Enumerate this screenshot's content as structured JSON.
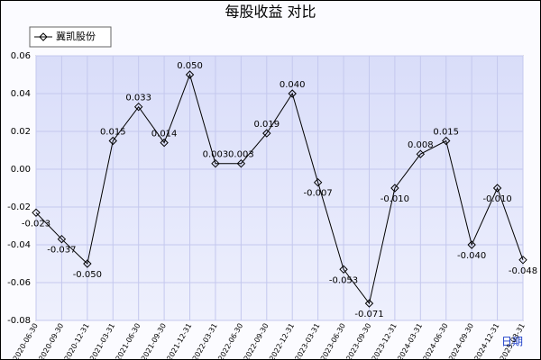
{
  "chart_data": {
    "type": "line",
    "title": "每股收益  对比",
    "xlabel": "日期",
    "categories": [
      "2020-06-30",
      "2020-09-30",
      "2020-12-31",
      "2021-03-31",
      "2021-06-30",
      "2021-09-30",
      "2021-12-31",
      "2022-03-31",
      "2022-06-30",
      "2022-09-30",
      "2022-12-31",
      "2023-03-31",
      "2023-06-30",
      "2023-09-30",
      "2023-12-31",
      "2024-03-31",
      "2024-06-30",
      "2024-09-30",
      "2024-12-31",
      "2025-03-31"
    ],
    "series": [
      {
        "name": "冀凯股份",
        "color": "#000000",
        "values": [
          -0.023,
          -0.037,
          -0.05,
          0.015,
          0.033,
          0.014,
          0.05,
          0.003,
          0.003,
          0.019,
          0.04,
          -0.007,
          -0.053,
          -0.071,
          -0.01,
          0.008,
          0.015,
          -0.04,
          -0.01,
          -0.048
        ],
        "value_labels": [
          "-0.023",
          "-0.037",
          "-0.050",
          "0.015",
          "0.033",
          "0.014",
          "0.050",
          "0.003",
          "0.003",
          "0.019",
          "0.040",
          "-0.007",
          "-0.053",
          "-0.071",
          "-0.010",
          "0.008",
          "0.015",
          "-0.040",
          "-0.010",
          "-0.048"
        ]
      }
    ],
    "ylim": [
      -0.08,
      0.06
    ],
    "yticks": [
      -0.08,
      -0.06,
      -0.04,
      -0.02,
      {
        "value": 0,
        "label": "0.00"
      },
      0.02,
      0.04,
      0.06
    ],
    "grid": true
  }
}
